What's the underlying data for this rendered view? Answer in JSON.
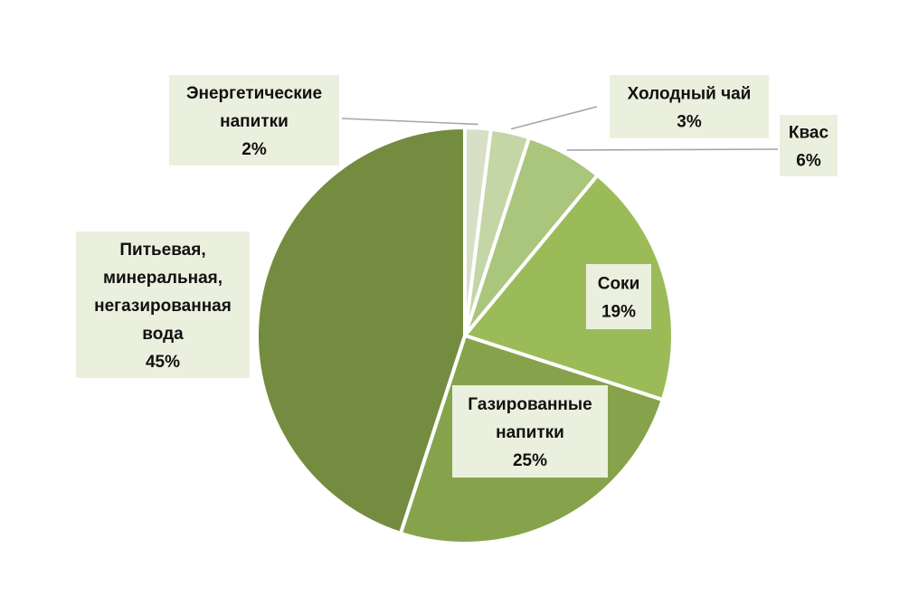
{
  "chart_data": {
    "type": "pie",
    "slices": [
      {
        "name": "Энергетические напитки",
        "label_lines": [
          "Энергетические",
          "напитки",
          "2%"
        ],
        "value": 2,
        "color": "#d7e0c7"
      },
      {
        "name": "Холодный чай",
        "label_lines": [
          "Холодный чай",
          "3%"
        ],
        "value": 3,
        "color": "#c4d5a6"
      },
      {
        "name": "Квас",
        "label_lines": [
          "Квас",
          "6%"
        ],
        "value": 6,
        "color": "#aac57c"
      },
      {
        "name": "Соки",
        "label_lines": [
          "Соки",
          "19%"
        ],
        "value": 19,
        "color": "#9bbb59"
      },
      {
        "name": "Газированные напитки",
        "label_lines": [
          "Газированные",
          "напитки",
          "25%"
        ],
        "value": 25,
        "color": "#86a34b"
      },
      {
        "name": "Питьевая, минеральная, негазированная вода",
        "label_lines": [
          "Питьевая,",
          "минеральная,",
          "негазированная",
          "вода",
          "45%"
        ],
        "value": 45,
        "color": "#748c3f"
      }
    ],
    "start_angle_deg": 0,
    "direction": "clockwise",
    "legend": "none",
    "data_labels": "category-and-percent"
  }
}
